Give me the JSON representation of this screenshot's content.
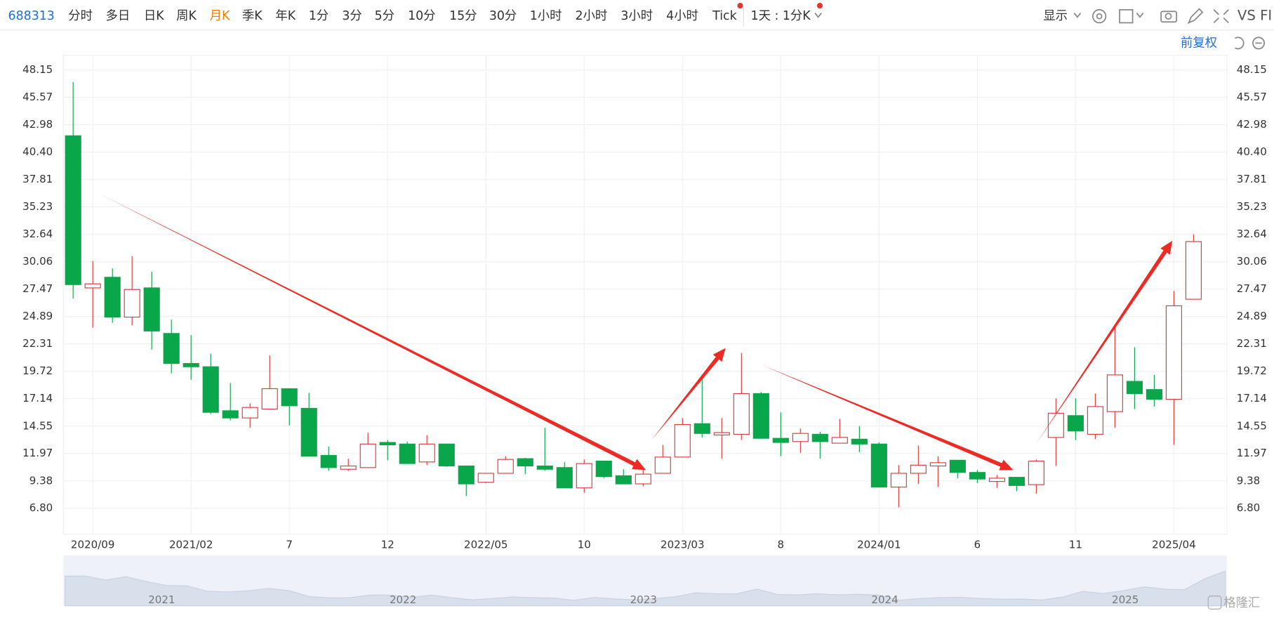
{
  "toolbar": {
    "code": "688313",
    "periods": [
      "分时",
      "多日",
      "日K",
      "周K",
      "月K",
      "季K",
      "年K",
      "1分",
      "3分",
      "5分",
      "10分",
      "15分",
      "30分",
      "1小时",
      "2小时",
      "3小时",
      "4小时",
      "Tick"
    ],
    "interval": "1天 : 1分K",
    "display": "显示",
    "compare": "VS FI"
  },
  "adjust": "前复权",
  "chart_data": {
    "type": "candlestick",
    "categories": [
      null,
      "2020/09",
      null,
      null,
      null,
      null,
      "2021/02",
      null,
      null,
      null,
      null,
      "7",
      null,
      null,
      null,
      null,
      "12",
      null,
      null,
      null,
      null,
      "2022/05",
      null,
      null,
      null,
      null,
      "10",
      null,
      null,
      null,
      null,
      "2023/03",
      null,
      null,
      null,
      null,
      "8",
      null,
      null,
      null,
      null,
      "2024/01",
      null,
      null,
      null,
      null,
      "6",
      null,
      null,
      null,
      null,
      "11",
      null,
      null,
      null,
      null,
      "2025/04",
      null
    ],
    "open": [
      41.94,
      27.59,
      28.59,
      24.83,
      27.59,
      23.29,
      20.46,
      20.15,
      16.0,
      15.32,
      16.16,
      18.08,
      16.23,
      11.79,
      10.48,
      10.64,
      13.01,
      12.86,
      11.17,
      12.86,
      10.79,
      9.25,
      10.1,
      11.48,
      10.79,
      10.64,
      8.72,
      11.25,
      9.87,
      9.1,
      10.1,
      11.63,
      14.78,
      13.71,
      13.78,
      17.62,
      13.4,
      13.09,
      13.78,
      12.94,
      13.32,
      12.86,
      8.8,
      10.1,
      10.79,
      11.33,
      10.18,
      9.33,
      9.72,
      9.03,
      13.48,
      15.54,
      13.78,
      15.92,
      18.77,
      18.0,
      17.08,
      26.52
    ],
    "high": [
      47.0,
      30.12,
      29.43,
      30.58,
      29.12,
      24.6,
      23.14,
      21.38,
      18.61,
      16.7,
      21.22,
      18.08,
      17.69,
      12.63,
      11.48,
      13.93,
      13.24,
      13.09,
      13.7,
      12.86,
      10.79,
      10.1,
      11.71,
      11.56,
      14.39,
      11.17,
      11.41,
      11.25,
      10.48,
      10.41,
      12.78,
      15.31,
      19.0,
      15.31,
      21.45,
      17.77,
      15.85,
      14.32,
      14.01,
      15.24,
      14.55,
      13.01,
      10.87,
      12.71,
      11.71,
      11.33,
      10.41,
      9.94,
      9.72,
      11.41,
      17.16,
      17.16,
      17.62,
      23.91,
      21.99,
      19.38,
      27.3,
      32.65
    ],
    "low": [
      26.59,
      23.83,
      24.29,
      24.06,
      21.76,
      19.53,
      18.92,
      15.7,
      15.08,
      14.39,
      16.16,
      14.62,
      11.71,
      10.33,
      10.33,
      10.64,
      11.33,
      11.02,
      10.87,
      10.71,
      7.95,
      9.18,
      10.1,
      10.02,
      10.33,
      8.72,
      8.26,
      9.64,
      9.1,
      8.87,
      10.1,
      11.63,
      13.48,
      11.48,
      13.24,
      13.4,
      11.71,
      12.02,
      11.48,
      12.94,
      12.09,
      8.8,
      6.88,
      9.1,
      8.8,
      9.64,
      9.18,
      8.72,
      8.41,
      8.18,
      10.79,
      13.24,
      13.32,
      14.39,
      16.16,
      16.39,
      12.78,
      26.52
    ],
    "close": [
      27.9,
      27.97,
      24.83,
      27.44,
      23.52,
      20.46,
      20.15,
      15.85,
      15.32,
      16.31,
      18.08,
      16.47,
      11.71,
      10.64,
      10.79,
      12.86,
      12.78,
      11.02,
      12.86,
      10.79,
      9.1,
      10.1,
      11.41,
      10.79,
      10.48,
      8.72,
      11.02,
      9.79,
      9.1,
      10.02,
      11.63,
      14.7,
      13.86,
      13.94,
      17.62,
      13.4,
      13.01,
      13.86,
      13.09,
      13.48,
      12.86,
      8.8,
      10.1,
      10.87,
      11.1,
      10.18,
      9.56,
      9.64,
      8.95,
      11.25,
      15.77,
      14.09,
      16.39,
      19.38,
      17.62,
      17.08,
      25.9,
      31.96
    ],
    "up_color": "#dd3b3b",
    "down_color": "#0aa64a",
    "ylim": [
      4.35,
      49.53
    ],
    "yticks": [
      48.15,
      45.57,
      42.98,
      {
        "value": 40.4,
        "label": "40.40"
      },
      37.81,
      35.23,
      32.64,
      30.06,
      27.47,
      24.89,
      22.31,
      19.72,
      17.14,
      14.55,
      11.97,
      9.38,
      {
        "value": 6.8,
        "label": "6.80"
      }
    ],
    "grid": true
  },
  "navigator": {
    "labels": [
      "2021",
      "2022",
      "2023",
      "2024",
      "2025"
    ]
  },
  "watermark": "格隆汇"
}
